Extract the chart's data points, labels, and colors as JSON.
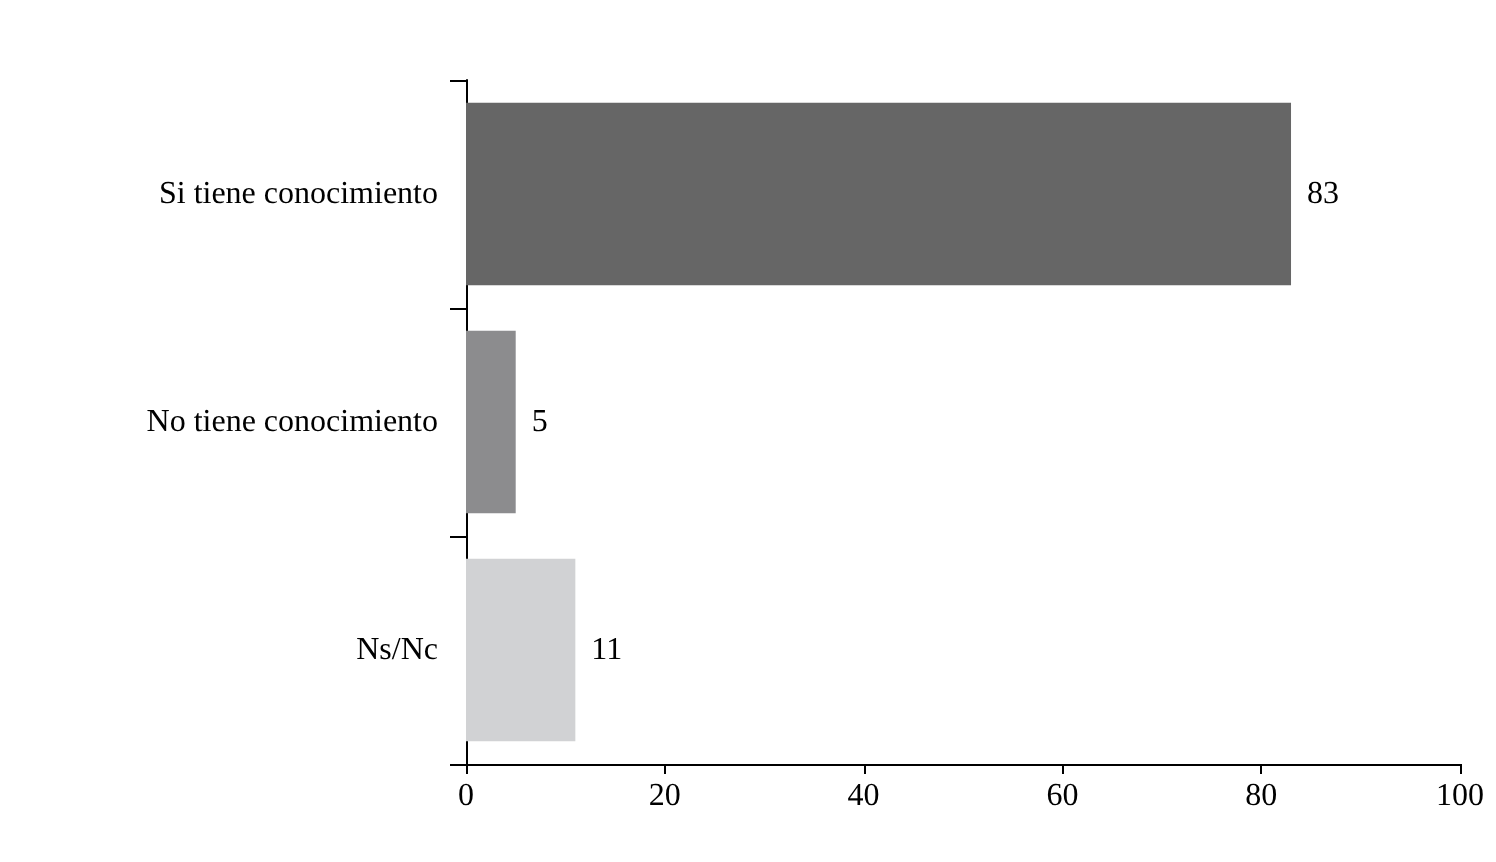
{
  "chart_data": {
    "type": "bar",
    "orientation": "horizontal",
    "categories": [
      "Si tiene conocimiento",
      "No tiene conocimiento",
      "Ns/Nc"
    ],
    "values": [
      83,
      5,
      11
    ],
    "colors": [
      "#666666",
      "#8c8c8e",
      "#d1d2d4"
    ],
    "xlim": [
      0,
      100
    ],
    "xticks": [
      0,
      20,
      40,
      60,
      80,
      100
    ],
    "grid": false,
    "data_labels": true
  }
}
